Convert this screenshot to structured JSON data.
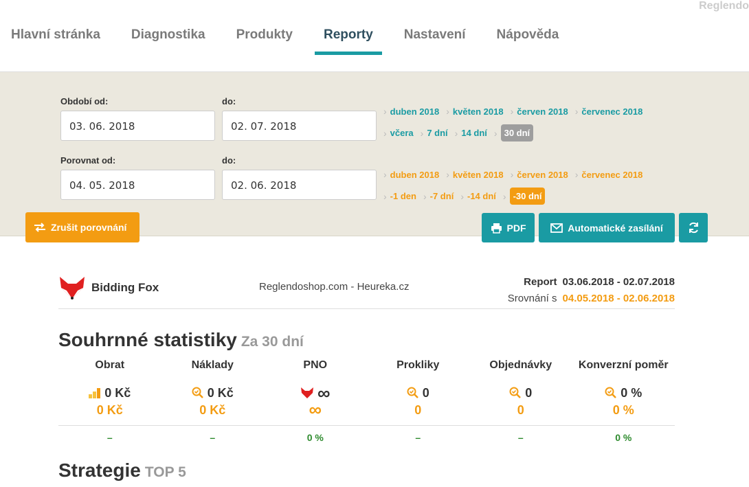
{
  "brand": "Reglendo",
  "nav": [
    {
      "label": "Hlavní stránka"
    },
    {
      "label": "Diagnostika"
    },
    {
      "label": "Produkty"
    },
    {
      "label": "Reporty",
      "active": true
    },
    {
      "label": "Nastavení"
    },
    {
      "label": "Nápověda"
    }
  ],
  "filter": {
    "period_from_label": "Období od:",
    "period_from_value": "03. 06. 2018",
    "period_to_label": "do:",
    "period_to_value": "02. 07. 2018",
    "compare_from_label": "Porovnat od:",
    "compare_from_value": "04. 05. 2018",
    "compare_to_label": "do:",
    "compare_to_value": "02. 06. 2018",
    "period_months": [
      "duben 2018",
      "květen 2018",
      "červen 2018",
      "červenec 2018"
    ],
    "period_ranges": [
      "včera",
      "7 dní",
      "14 dní",
      "30 dní"
    ],
    "period_range_selected": "30 dní",
    "compare_months": [
      "duben 2018",
      "květen 2018",
      "červen 2018",
      "červenec 2018"
    ],
    "compare_ranges": [
      "-1 den",
      "-7 dní",
      "-14 dní",
      "-30 dní"
    ],
    "compare_range_selected": "-30 dní"
  },
  "buttons": {
    "cancel_compare": "Zrušit porovnání",
    "pdf": "PDF",
    "auto_send": "Automatické zasílání",
    "refresh_icon": "refresh-icon"
  },
  "report": {
    "logo_text": "Bidding Fox",
    "shop": "Reglendoshop.com - Heureka.cz",
    "report_label": "Report",
    "report_range": "03.06.2018 - 02.07.2018",
    "compare_label": "Srovnání s",
    "compare_range": "04.05.2018 - 02.06.2018"
  },
  "summary": {
    "title": "Souhrnné statistiky",
    "subtitle": "Za 30 dní",
    "stats": [
      {
        "label": "Obrat",
        "icon": "bars-icon",
        "current": "0 Kč",
        "previous": "0 Kč",
        "diff": "–"
      },
      {
        "label": "Náklady",
        "icon": "search-check-icon",
        "current": "0 Kč",
        "previous": "0 Kč",
        "diff": "–"
      },
      {
        "label": "PNO",
        "icon": "fox-icon",
        "current": "∞",
        "previous": "∞",
        "diff": "0 %"
      },
      {
        "label": "Prokliky",
        "icon": "search-check-icon",
        "current": "0",
        "previous": "0",
        "diff": "–"
      },
      {
        "label": "Objednávky",
        "icon": "search-check-icon",
        "current": "0",
        "previous": "0",
        "diff": "–"
      },
      {
        "label": "Konverzní poměr",
        "icon": "search-check-icon",
        "current": "0 %",
        "previous": "0 %",
        "diff": "0 %"
      }
    ]
  },
  "strategy": {
    "title": "Strategie",
    "subtitle": "TOP 5"
  },
  "colors": {
    "accent": "#1a9ba3",
    "orange": "#f39c12",
    "positive": "#2e8b2e"
  }
}
